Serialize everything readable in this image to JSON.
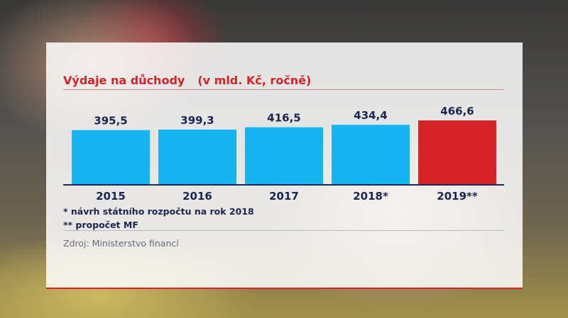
{
  "chart_data": {
    "type": "bar",
    "title": "Výdaje na důchody",
    "subtitle": "(v mld. Kč, ročně)",
    "categories": [
      "2015",
      "2016",
      "2017",
      "2018*",
      "2019**"
    ],
    "values": [
      395.5,
      399.3,
      416.5,
      434.4,
      466.6
    ],
    "value_labels": [
      "395,5",
      "399,3",
      "416,5",
      "434,4",
      "466,6"
    ],
    "colors": [
      "#16b4f0",
      "#16b4f0",
      "#16b4f0",
      "#16b4f0",
      "#d6232a"
    ],
    "ylim": [
      0,
      466.6
    ],
    "grid": false,
    "legend": "none"
  },
  "notes": [
    "* návrh státního rozpočtu na rok 2018",
    "** propočet MF"
  ],
  "source": "Zdroj: Ministerstvo financí"
}
